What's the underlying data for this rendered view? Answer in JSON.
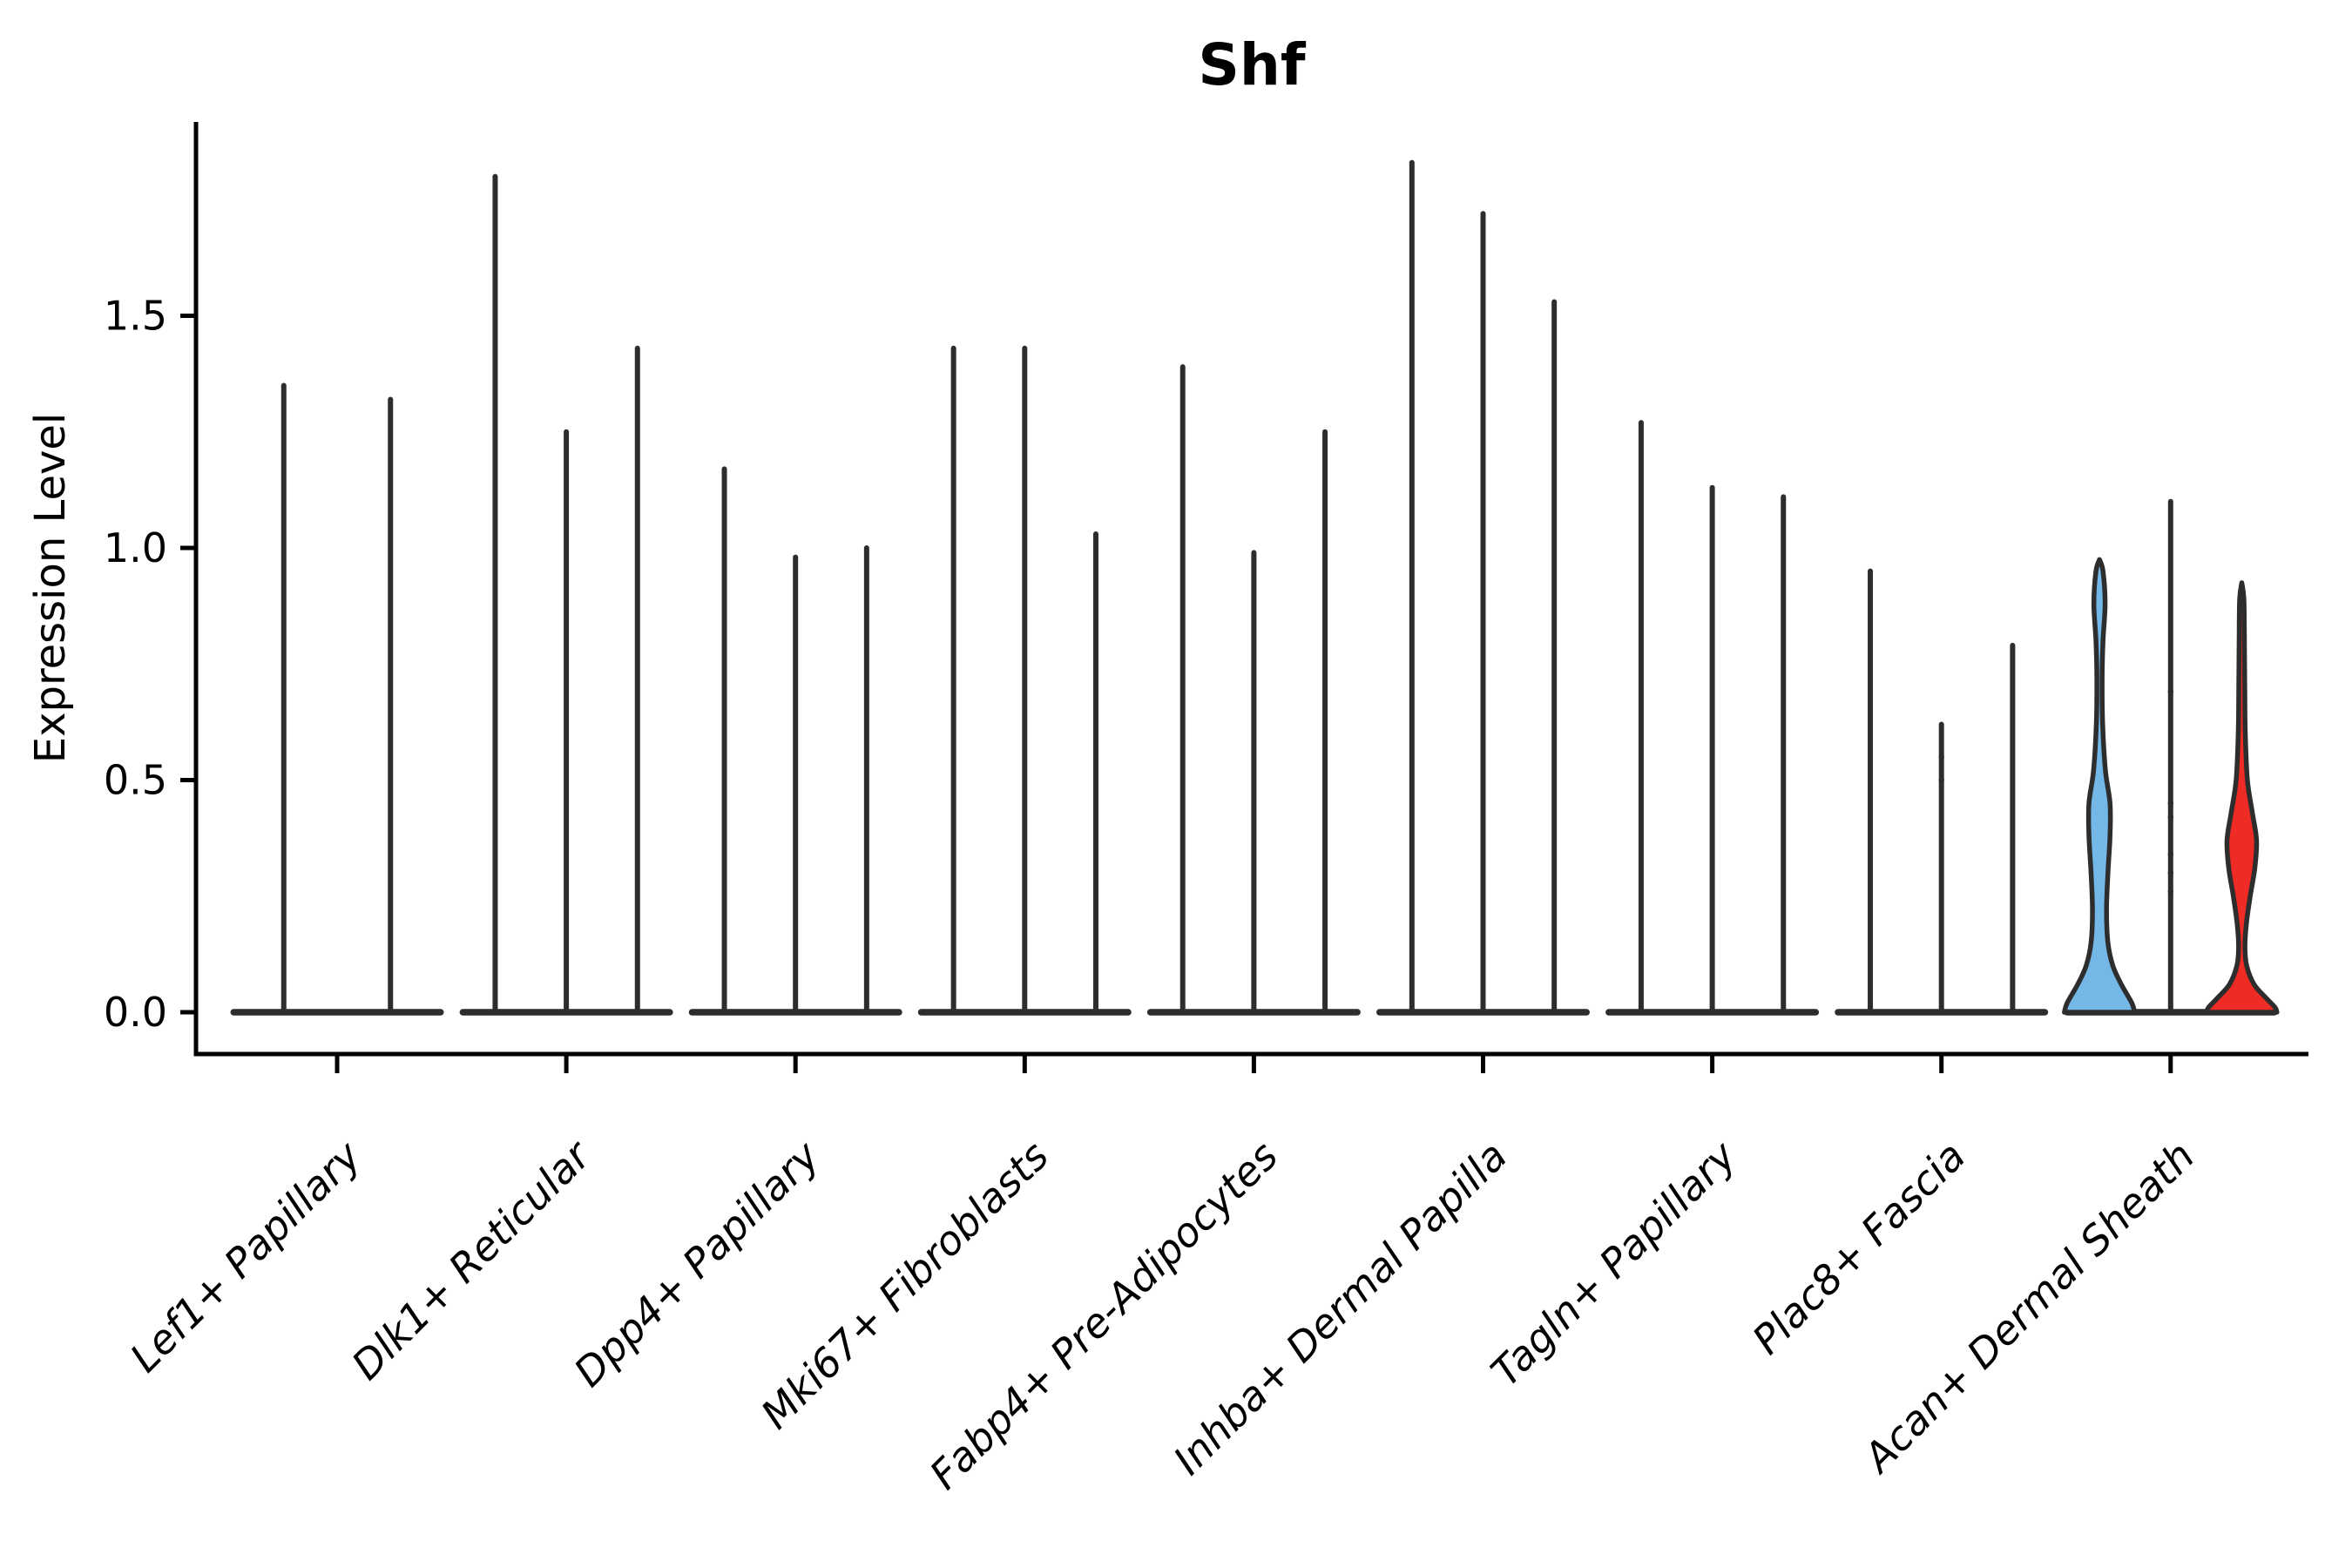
{
  "title": "Shf",
  "ylabel": "Expression Level",
  "colors": {
    "background": "#ffffff",
    "axis": "#000000",
    "violin_stroke": "#2d2d2d",
    "blue_fill": "#74b8e8",
    "red_fill": "#ee2b24"
  },
  "chart_data": {
    "type": "violin",
    "title": "Shf",
    "xlabel": "",
    "ylabel": "Expression Level",
    "ylim": [
      0,
      1.92
    ],
    "grid": false,
    "legend": false,
    "x_tick_rotation": 45,
    "ytick_labels": [
      "0.0",
      "0.5",
      "1.0",
      "1.5"
    ],
    "ytick_values": [
      0.0,
      0.5,
      1.0,
      1.5
    ],
    "categories": [
      "Lef1+ Papillary",
      "Dlk1+ Reticular",
      "Dpp4+ Papillary",
      "Mki67+ Fibroblasts",
      "Fabp4+ Pre-Adipocytes",
      "Inhba+ Dermal Papilla",
      "Tagln+ Papillary",
      "Plac8+ Fascia",
      "Acan+ Dermal Sheath"
    ],
    "groups": [
      {
        "label": "Lef1+ Papillary",
        "violins": [
          {
            "peak": 1.35
          },
          {
            "peak": 1.32
          }
        ]
      },
      {
        "label": "Dlk1+ Reticular",
        "violins": [
          {
            "peak": 1.8
          },
          {
            "peak": 1.25
          },
          {
            "peak": 1.43
          }
        ]
      },
      {
        "label": "Dpp4+ Papillary",
        "violins": [
          {
            "peak": 1.17
          },
          {
            "peak": 0.98
          },
          {
            "peak": 1.0
          }
        ]
      },
      {
        "label": "Mki67+ Fibroblasts",
        "violins": [
          {
            "peak": 1.43
          },
          {
            "peak": 1.43
          },
          {
            "peak": 1.03
          }
        ]
      },
      {
        "label": "Fabp4+ Pre-Adipocytes",
        "violins": [
          {
            "peak": 1.39
          },
          {
            "peak": 0.99
          },
          {
            "peak": 1.25
          }
        ]
      },
      {
        "label": "Inhba+ Dermal Papilla",
        "violins": [
          {
            "peak": 1.83
          },
          {
            "peak": 1.72
          },
          {
            "peak": 1.53
          }
        ]
      },
      {
        "label": "Tagln+ Papillary",
        "violins": [
          {
            "peak": 1.27
          },
          {
            "peak": 1.13
          },
          {
            "peak": 1.11
          }
        ]
      },
      {
        "label": "Plac8+ Fascia",
        "violins": [
          {
            "peak": 0.95
          },
          {
            "peak": 0.62,
            "points": [
              0.55,
              0.5
            ]
          },
          {
            "peak": 0.79
          }
        ]
      },
      {
        "label": "Acan+ Dermal Sheath",
        "violins": [
          {
            "peak": 0.97,
            "fill": "#74b8e8",
            "profile": [
              [
                0.975,
                0
              ],
              [
                0.95,
                0.1
              ],
              [
                0.88,
                0.16
              ],
              [
                0.8,
                0.1
              ],
              [
                0.72,
                0.075
              ],
              [
                0.62,
                0.09
              ],
              [
                0.52,
                0.17
              ],
              [
                0.45,
                0.3
              ],
              [
                0.38,
                0.3
              ],
              [
                0.3,
                0.24
              ],
              [
                0.22,
                0.2
              ],
              [
                0.15,
                0.24
              ],
              [
                0.1,
                0.38
              ],
              [
                0.06,
                0.62
              ],
              [
                0.02,
                0.92
              ],
              [
                0.0,
                1.0
              ]
            ]
          },
          {
            "peak": 1.1,
            "points": [
              0.69,
              0.45,
              0.42,
              0.34,
              0.3,
              0.26
            ]
          },
          {
            "peak": 0.93,
            "fill": "#ee2b24",
            "profile": [
              [
                0.925,
                0
              ],
              [
                0.89,
                0.06
              ],
              [
                0.8,
                0.075
              ],
              [
                0.7,
                0.085
              ],
              [
                0.6,
                0.1
              ],
              [
                0.5,
                0.16
              ],
              [
                0.43,
                0.3
              ],
              [
                0.37,
                0.42
              ],
              [
                0.31,
                0.37
              ],
              [
                0.25,
                0.24
              ],
              [
                0.19,
                0.13
              ],
              [
                0.14,
                0.09
              ],
              [
                0.1,
                0.14
              ],
              [
                0.06,
                0.35
              ],
              [
                0.03,
                0.7
              ],
              [
                0.01,
                0.95
              ],
              [
                0.0,
                1.0
              ]
            ]
          }
        ]
      }
    ]
  }
}
